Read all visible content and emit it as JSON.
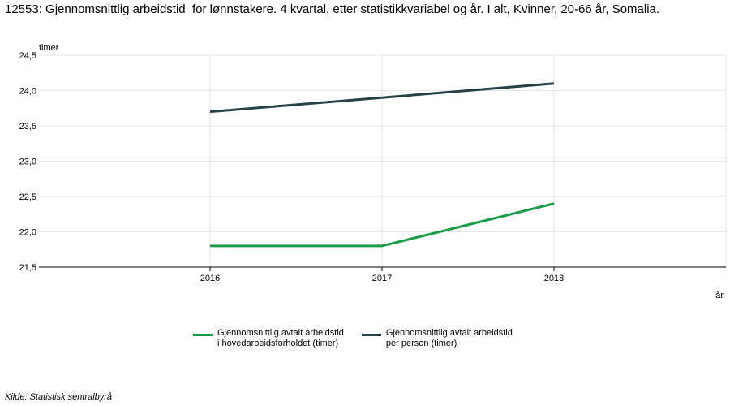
{
  "title": "12553: Gjennomsnittlig arbeidstid  for lønnstakere. 4 kvartal, etter statistikkvariabel og år. I alt, Kvinner, 20-66 år, Somalia.",
  "source": "Kilde:  Statistisk sentralbyrå",
  "chart_data": {
    "type": "line",
    "ylabel": "timer",
    "xlabel": "år",
    "ylim": [
      21.5,
      24.5
    ],
    "yticks": [
      "21,5",
      "22,0",
      "22,5",
      "23,0",
      "23,5",
      "24,0",
      "24,5"
    ],
    "x": [
      "2016",
      "2017",
      "2018"
    ],
    "grid": true,
    "legend_position": "bottom",
    "series": [
      {
        "name": "Gjennomsnittlig avtalt arbeidstid\ni hovedarbeidsforholdet (timer)",
        "color": "#1a9d49",
        "values": [
          21.8,
          21.8,
          22.4
        ]
      },
      {
        "name": "Gjennomsnittlig avtalt arbeidstid\nper person (timer)",
        "color": "#274247",
        "values": [
          23.7,
          23.9,
          24.1
        ]
      }
    ]
  }
}
